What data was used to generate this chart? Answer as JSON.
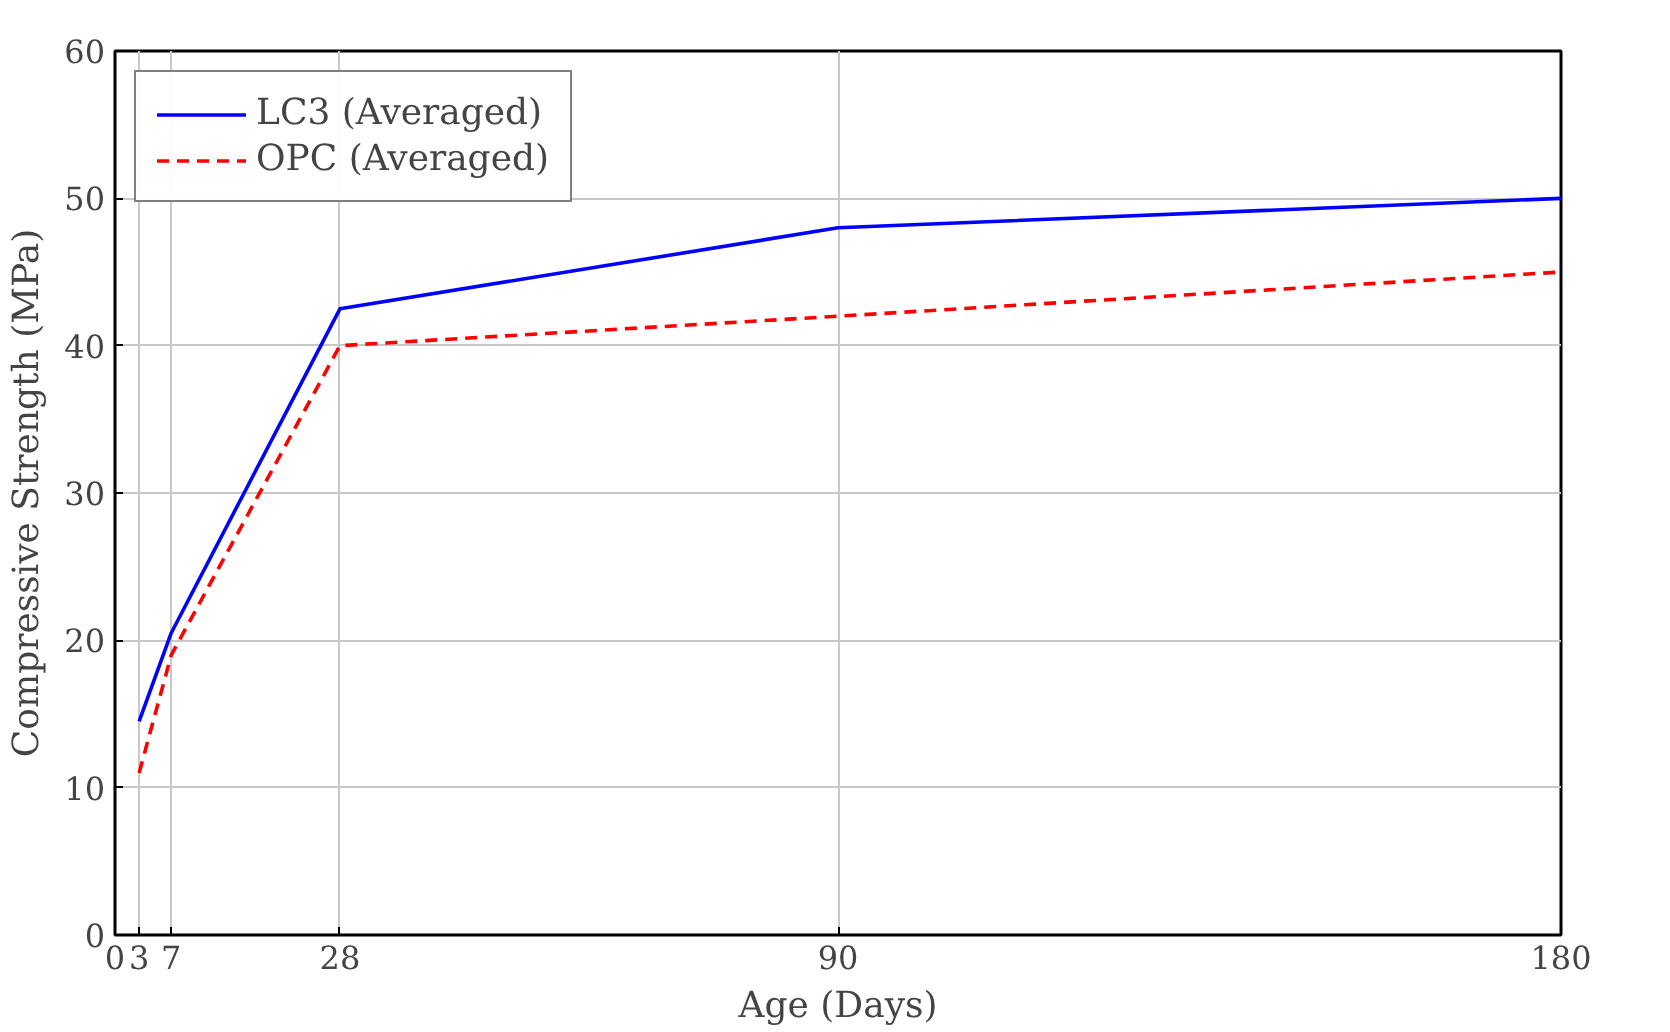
{
  "chart_data": {
    "type": "line",
    "xlabel": "Age (Days)",
    "ylabel": "Compressive Strength (MPa)",
    "x": [
      3,
      7,
      28,
      90,
      180
    ],
    "series": [
      {
        "name": "LC3 (Averaged)",
        "color": "#0000ff",
        "values": [
          14.5,
          20.5,
          42.5,
          48,
          50
        ],
        "line_style": "solid"
      },
      {
        "name": "OPC (Averaged)",
        "color": "#ff0000",
        "values": [
          11,
          19,
          40,
          42,
          45
        ],
        "line_style": "dashed"
      }
    ],
    "xlim": [
      0,
      180
    ],
    "ylim": [
      0,
      60
    ],
    "xticks": [
      0,
      3,
      7,
      28,
      90,
      180
    ],
    "yticks": [
      0,
      10,
      20,
      30,
      40,
      50,
      60
    ],
    "grid": true,
    "legend": "top left",
    "marker": "none"
  }
}
